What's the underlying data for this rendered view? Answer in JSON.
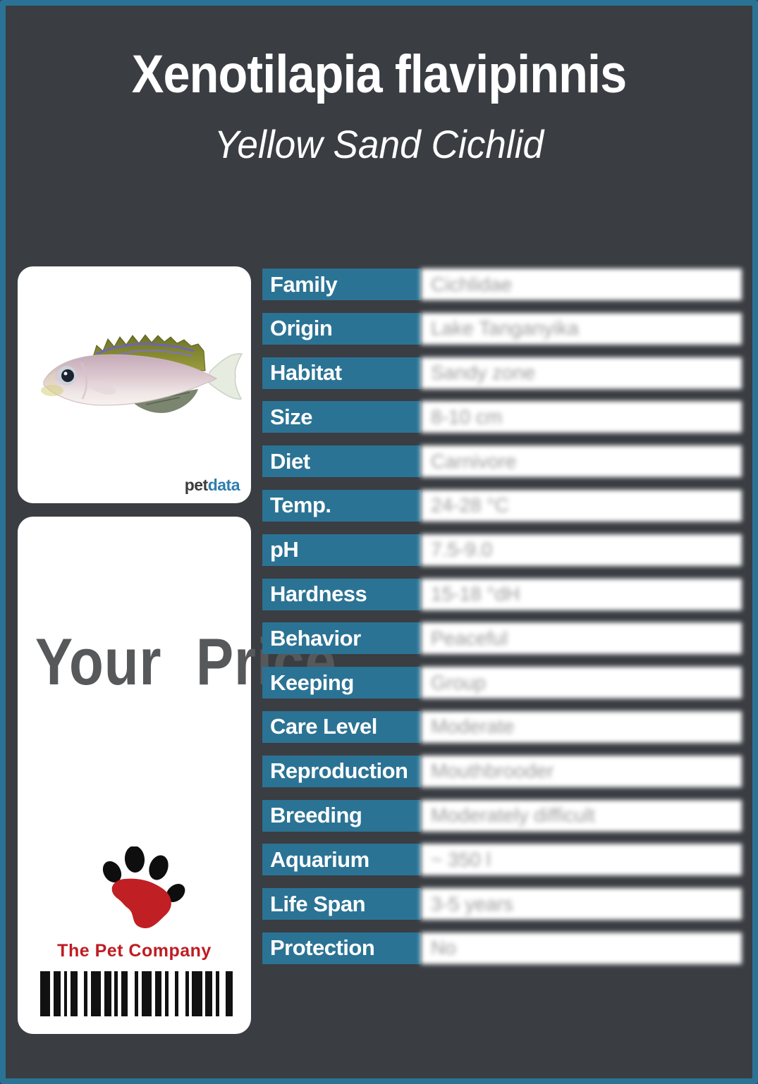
{
  "header": {
    "title": "Xenotilapia flavipinnis",
    "subtitle": "Yellow Sand Cichlid"
  },
  "photo_card": {
    "brand_pet": "pet",
    "brand_data": "data"
  },
  "price_card": {
    "price_text": "Your Price",
    "company_name": "The Pet Company",
    "barcode_pattern": "3121112211312111221131211212113121122"
  },
  "table": {
    "rows": [
      {
        "label": "Family",
        "value": "Cichlidae"
      },
      {
        "label": "Origin",
        "value": "Lake Tanganyika"
      },
      {
        "label": "Habitat",
        "value": "Sandy zone"
      },
      {
        "label": "Size",
        "value": "8-10 cm"
      },
      {
        "label": "Diet",
        "value": "Carnivore"
      },
      {
        "label": "Temp.",
        "value": "24-28 °C"
      },
      {
        "label": "pH",
        "value": "7.5-9.0"
      },
      {
        "label": "Hardness",
        "value": "15-18 °dH"
      },
      {
        "label": "Behavior",
        "value": "Peaceful"
      },
      {
        "label": "Keeping",
        "value": "Group"
      },
      {
        "label": "Care Level",
        "value": "Moderate"
      },
      {
        "label": "Reproduction",
        "value": "Mouthbrooder"
      },
      {
        "label": "Breeding",
        "value": "Moderately difficult"
      },
      {
        "label": "Aquarium",
        "value": "~ 350 l"
      },
      {
        "label": "Life Span",
        "value": "3-5 years"
      },
      {
        "label": "Protection",
        "value": "No"
      }
    ]
  },
  "colors": {
    "background": "#3a3d42",
    "accent_teal": "#2b7394",
    "value_gray": "#9c9c9c",
    "price_gray": "#57585a",
    "brand_red": "#bf1b22"
  }
}
